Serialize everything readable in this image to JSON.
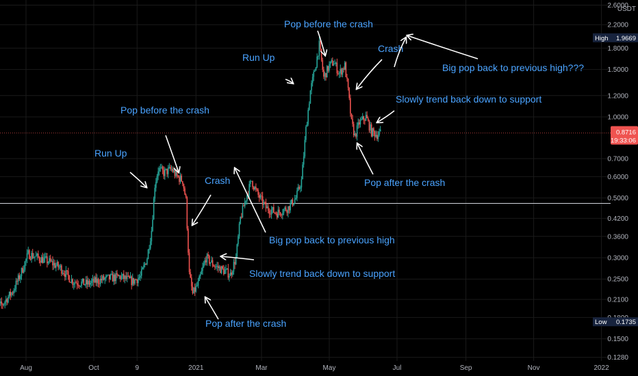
{
  "chart_data": {
    "type": "candlestick",
    "currency": "USDT",
    "y_scale": "log",
    "ylim": [
      0.128,
      2.6
    ],
    "x_range": [
      "2020-07-01",
      "2022-01-31"
    ],
    "grid": true,
    "y_ticks": [
      "2.6000",
      "2.2000",
      "1.8000",
      "1.5000",
      "1.2000",
      "1.0000",
      "0.7000",
      "0.6000",
      "0.5000",
      "0.4200",
      "0.3600",
      "0.3000",
      "0.2500",
      "0.2100",
      "0.1800",
      "0.1500",
      "0.1280"
    ],
    "y_tick_values": [
      2.6,
      2.2,
      1.8,
      1.5,
      1.2,
      1.0,
      0.7,
      0.6,
      0.5,
      0.42,
      0.36,
      0.3,
      0.25,
      0.21,
      0.18,
      0.15,
      0.128
    ],
    "x_ticks": [
      {
        "label": "Aug",
        "date": "2020-08-01"
      },
      {
        "label": "Oct",
        "date": "2020-10-01"
      },
      {
        "label": "9",
        "date": "2020-11-09"
      },
      {
        "label": "2021",
        "date": "2021-01-01"
      },
      {
        "label": "Mar",
        "date": "2021-03-01"
      },
      {
        "label": "May",
        "date": "2021-05-01"
      },
      {
        "label": "Jul",
        "date": "2021-07-01"
      },
      {
        "label": "Sep",
        "date": "2021-09-01"
      },
      {
        "label": "Nov",
        "date": "2021-11-01"
      },
      {
        "label": "2022",
        "date": "2022-01-01"
      }
    ],
    "price_path": [
      {
        "date": "2020-07-01",
        "price": 0.195
      },
      {
        "date": "2020-07-10",
        "price": 0.2
      },
      {
        "date": "2020-07-20",
        "price": 0.225
      },
      {
        "date": "2020-07-27",
        "price": 0.26
      },
      {
        "date": "2020-08-03",
        "price": 0.31
      },
      {
        "date": "2020-08-12",
        "price": 0.3
      },
      {
        "date": "2020-08-22",
        "price": 0.29
      },
      {
        "date": "2020-09-01",
        "price": 0.275
      },
      {
        "date": "2020-09-12",
        "price": 0.245
      },
      {
        "date": "2020-09-25",
        "price": 0.24
      },
      {
        "date": "2020-10-10",
        "price": 0.25
      },
      {
        "date": "2020-10-25",
        "price": 0.255
      },
      {
        "date": "2020-11-05",
        "price": 0.245
      },
      {
        "date": "2020-11-12",
        "price": 0.255
      },
      {
        "date": "2020-11-18",
        "price": 0.3
      },
      {
        "date": "2020-11-22",
        "price": 0.38
      },
      {
        "date": "2020-11-25",
        "price": 0.56
      },
      {
        "date": "2020-11-28",
        "price": 0.64
      },
      {
        "date": "2020-12-03",
        "price": 0.62
      },
      {
        "date": "2020-12-10",
        "price": 0.64
      },
      {
        "date": "2020-12-15",
        "price": 0.6
      },
      {
        "date": "2020-12-20",
        "price": 0.58
      },
      {
        "date": "2020-12-23",
        "price": 0.49
      },
      {
        "date": "2020-12-26",
        "price": 0.26
      },
      {
        "date": "2020-12-29",
        "price": 0.22
      },
      {
        "date": "2021-01-03",
        "price": 0.24
      },
      {
        "date": "2021-01-10",
        "price": 0.3
      },
      {
        "date": "2021-01-18",
        "price": 0.28
      },
      {
        "date": "2021-01-25",
        "price": 0.27
      },
      {
        "date": "2021-02-01",
        "price": 0.26
      },
      {
        "date": "2021-02-06",
        "price": 0.3
      },
      {
        "date": "2021-02-10",
        "price": 0.42
      },
      {
        "date": "2021-02-15",
        "price": 0.5
      },
      {
        "date": "2021-02-20",
        "price": 0.58
      },
      {
        "date": "2021-02-25",
        "price": 0.52
      },
      {
        "date": "2021-03-05",
        "price": 0.46
      },
      {
        "date": "2021-03-15",
        "price": 0.44
      },
      {
        "date": "2021-03-25",
        "price": 0.46
      },
      {
        "date": "2021-04-01",
        "price": 0.5
      },
      {
        "date": "2021-04-06",
        "price": 0.58
      },
      {
        "date": "2021-04-10",
        "price": 0.9
      },
      {
        "date": "2021-04-14",
        "price": 1.25
      },
      {
        "date": "2021-04-18",
        "price": 1.5
      },
      {
        "date": "2021-04-22",
        "price": 1.85
      },
      {
        "date": "2021-04-26",
        "price": 1.4
      },
      {
        "date": "2021-05-01",
        "price": 1.55
      },
      {
        "date": "2021-05-05",
        "price": 1.6
      },
      {
        "date": "2021-05-10",
        "price": 1.45
      },
      {
        "date": "2021-05-15",
        "price": 1.55
      },
      {
        "date": "2021-05-18",
        "price": 1.25
      },
      {
        "date": "2021-05-21",
        "price": 0.95
      },
      {
        "date": "2021-05-24",
        "price": 0.85
      },
      {
        "date": "2021-05-28",
        "price": 0.95
      },
      {
        "date": "2021-06-03",
        "price": 1.0
      },
      {
        "date": "2021-06-08",
        "price": 0.88
      },
      {
        "date": "2021-06-13",
        "price": 0.86
      },
      {
        "date": "2021-06-16",
        "price": 0.8716
      }
    ],
    "current_price": {
      "label": "0.8716",
      "value": 0.8716,
      "timer": "19:33:06"
    },
    "high": {
      "label": "High",
      "value": "1.9669",
      "num": 1.9669
    },
    "low": {
      "label": "Low",
      "value": "0.1735",
      "num": 0.1735
    },
    "horizontal_lines": [
      {
        "value": 0.4775,
        "label": "support"
      }
    ],
    "annotations": [
      {
        "text": "Run Up"
      },
      {
        "text": "Pop before the crash"
      },
      {
        "text": "Crash"
      },
      {
        "text": "Big pop back to previous high"
      },
      {
        "text": "Slowly trend back down to support"
      },
      {
        "text": "Pop after the crash"
      },
      {
        "text": "Run Up"
      },
      {
        "text": "Pop before the crash"
      },
      {
        "text": "Crash"
      },
      {
        "text": "Big pop back to previous high???"
      },
      {
        "text": "Slowly trend back down to support"
      },
      {
        "text": "Pop after the crash"
      }
    ],
    "colors": {
      "up": "#26a69a",
      "down": "#ef5350",
      "annotation": "#4aa3ff",
      "arrow": "#ffffff",
      "grid": "#1a1a1a",
      "background": "#000000",
      "badge": "#17233d",
      "price_badge": "#ef5350"
    }
  }
}
